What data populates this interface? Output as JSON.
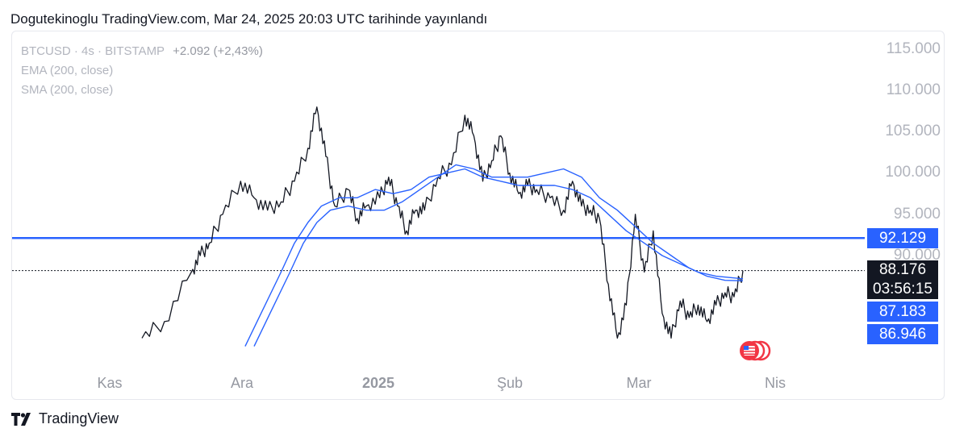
{
  "header": "Dogutekinoglu TradingView.com, Mar 24, 2025 20:03 UTC tarihinde yayınlandı",
  "legend": {
    "symbol": "BTCUSD · 4s · BITSTAMP",
    "change": "+2.092 (+2,43%)",
    "ema": "EMA (200, close)",
    "sma": "SMA (200, close)"
  },
  "y_ticks": [
    "115.000",
    "110.000",
    "105.000",
    "100.000",
    "95.000",
    "90.000"
  ],
  "x_ticks": [
    "Kas",
    "Ara",
    "2025",
    "Şub",
    "Mar",
    "Nis"
  ],
  "tags": {
    "horizontal_line": "92.129",
    "last_price": "88.176",
    "countdown": "03:56:15",
    "ema_value": "87.183",
    "sma_value": "86.946"
  },
  "footer_brand": "TradingView",
  "colors": {
    "accent": "#2962ff",
    "price": "#131722",
    "grid_text": "#b2b5be"
  },
  "chart_data": {
    "type": "line",
    "title": "BTCUSD · 4s · BITSTAMP",
    "x": [
      "Kas",
      "Ara",
      "2025",
      "Şub",
      "Mar",
      "Nis"
    ],
    "ylim": [
      79000,
      117000
    ],
    "price_points": [
      [
        0.0,
        80000
      ],
      [
        0.05,
        82000
      ],
      [
        0.11,
        88000
      ],
      [
        0.13,
        90000
      ],
      [
        0.15,
        91500
      ],
      [
        0.18,
        95000
      ],
      [
        0.22,
        99000
      ],
      [
        0.25,
        97000
      ],
      [
        0.28,
        95500
      ],
      [
        0.31,
        96500
      ],
      [
        0.34,
        99000
      ],
      [
        0.37,
        103000
      ],
      [
        0.39,
        108000
      ],
      [
        0.41,
        102000
      ],
      [
        0.43,
        96000
      ],
      [
        0.46,
        98000
      ],
      [
        0.48,
        94500
      ],
      [
        0.5,
        96000
      ],
      [
        0.53,
        97000
      ],
      [
        0.55,
        99500
      ],
      [
        0.57,
        96000
      ],
      [
        0.59,
        93000
      ],
      [
        0.61,
        95500
      ],
      [
        0.63,
        95500
      ],
      [
        0.66,
        99500
      ],
      [
        0.69,
        101000
      ],
      [
        0.72,
        107000
      ],
      [
        0.74,
        104500
      ],
      [
        0.76,
        99000
      ],
      [
        0.78,
        101500
      ],
      [
        0.8,
        104500
      ],
      [
        0.82,
        100000
      ],
      [
        0.84,
        97500
      ],
      [
        0.86,
        98500
      ],
      [
        0.88,
        98000
      ],
      [
        0.91,
        97000
      ],
      [
        0.94,
        95500
      ],
      [
        0.96,
        99000
      ],
      [
        0.98,
        96000
      ],
      [
        1.0,
        95500
      ],
      [
        1.02,
        94500
      ],
      [
        1.04,
        86500
      ],
      [
        1.06,
        80000
      ],
      [
        1.08,
        84000
      ],
      [
        1.1,
        95000
      ],
      [
        1.12,
        88000
      ],
      [
        1.14,
        93000
      ],
      [
        1.16,
        83000
      ],
      [
        1.18,
        80000
      ],
      [
        1.2,
        84500
      ],
      [
        1.22,
        82500
      ],
      [
        1.24,
        84000
      ],
      [
        1.26,
        82000
      ],
      [
        1.28,
        84000
      ],
      [
        1.3,
        85500
      ],
      [
        1.32,
        85000
      ],
      [
        1.34,
        88176
      ]
    ],
    "ema_points": [
      [
        0.23,
        79000
      ],
      [
        0.27,
        83500
      ],
      [
        0.31,
        88000
      ],
      [
        0.34,
        91500
      ],
      [
        0.37,
        94000
      ],
      [
        0.4,
        96000
      ],
      [
        0.44,
        97000
      ],
      [
        0.48,
        97000
      ],
      [
        0.52,
        98000
      ],
      [
        0.56,
        97500
      ],
      [
        0.6,
        98000
      ],
      [
        0.64,
        99500
      ],
      [
        0.68,
        100000
      ],
      [
        0.72,
        100500
      ],
      [
        0.76,
        99500
      ],
      [
        0.8,
        99000
      ],
      [
        0.84,
        98500
      ],
      [
        0.88,
        98500
      ],
      [
        0.92,
        98500
      ],
      [
        0.96,
        98000
      ],
      [
        1.0,
        97000
      ],
      [
        1.04,
        95000
      ],
      [
        1.08,
        93000
      ],
      [
        1.12,
        91500
      ],
      [
        1.16,
        90000
      ],
      [
        1.2,
        89000
      ],
      [
        1.24,
        88000
      ],
      [
        1.28,
        87500
      ],
      [
        1.34,
        87183
      ]
    ],
    "sma_points": [
      [
        0.25,
        79000
      ],
      [
        0.29,
        83500
      ],
      [
        0.33,
        88000
      ],
      [
        0.36,
        91500
      ],
      [
        0.39,
        94000
      ],
      [
        0.42,
        95500
      ],
      [
        0.46,
        96000
      ],
      [
        0.5,
        95500
      ],
      [
        0.54,
        95500
      ],
      [
        0.58,
        96500
      ],
      [
        0.62,
        98000
      ],
      [
        0.66,
        99500
      ],
      [
        0.7,
        101000
      ],
      [
        0.74,
        100500
      ],
      [
        0.78,
        99500
      ],
      [
        0.82,
        99500
      ],
      [
        0.86,
        99500
      ],
      [
        0.9,
        100000
      ],
      [
        0.94,
        100500
      ],
      [
        0.98,
        99500
      ],
      [
        1.02,
        97000
      ],
      [
        1.06,
        95500
      ],
      [
        1.1,
        93500
      ],
      [
        1.14,
        91500
      ],
      [
        1.18,
        90000
      ],
      [
        1.22,
        88500
      ],
      [
        1.26,
        87500
      ],
      [
        1.3,
        87000
      ],
      [
        1.34,
        86946
      ]
    ],
    "horizontal_line": 92129,
    "last_price": 88176,
    "series": [
      {
        "name": "BTCUSD",
        "values_ref": "price_points"
      },
      {
        "name": "EMA (200, close)",
        "values_ref": "ema_points"
      },
      {
        "name": "SMA (200, close)",
        "values_ref": "sma_points"
      }
    ]
  }
}
